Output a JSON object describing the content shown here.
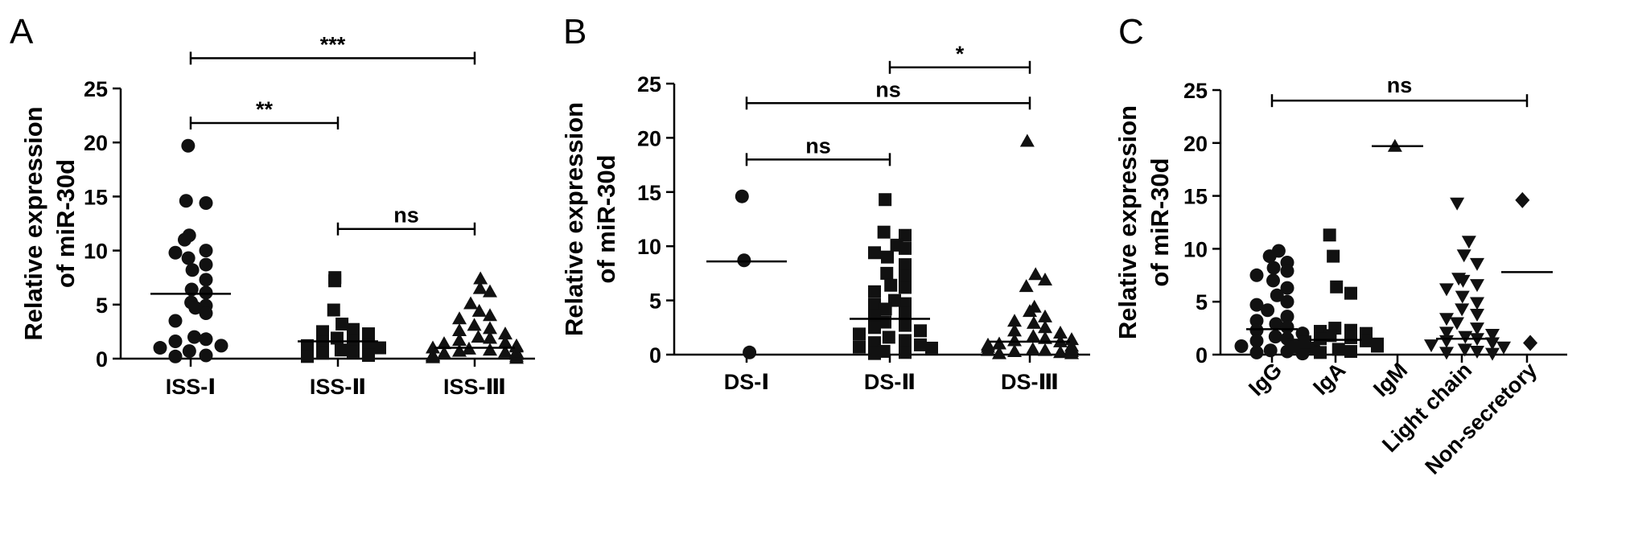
{
  "chart_data": [
    {
      "type": "scatter",
      "panel": "A",
      "ylabel": "Relative expression of miR-30d",
      "ylabel_lines": [
        "Relative expression",
        "of miR-30d"
      ],
      "ylim": [
        0,
        25
      ],
      "yticks": [
        0,
        5,
        10,
        15,
        20,
        25
      ],
      "categories": [
        "ISS-Ⅰ",
        "ISS-Ⅱ",
        "ISS-Ⅲ"
      ],
      "markers": [
        "circle",
        "square",
        "triangle-up"
      ],
      "means": [
        6.0,
        1.6,
        1.0
      ],
      "series": [
        {
          "category": "ISS-Ⅰ",
          "values": [
            19.7,
            14.6,
            14.4,
            11.4,
            11.0,
            10.0,
            9.8,
            9.3,
            8.7,
            8.2,
            7.3,
            6.4,
            6.1,
            5.2,
            4.9,
            4.7,
            4.2,
            3.5,
            2.0,
            1.8,
            1.6,
            1.2,
            1.0,
            0.7,
            0.3,
            0.2
          ]
        },
        {
          "category": "ISS-Ⅱ",
          "values": [
            7.5,
            7.2,
            4.5,
            3.2,
            2.7,
            2.5,
            2.3,
            1.9,
            1.7,
            1.5,
            1.3,
            1.2,
            1.0,
            0.8,
            0.6,
            0.5,
            0.3,
            0.2
          ]
        },
        {
          "category": "ISS-Ⅲ",
          "values": [
            7.4,
            6.5,
            6.2,
            5.1,
            4.4,
            4.0,
            3.7,
            3.1,
            2.8,
            2.6,
            2.3,
            2.0,
            1.9,
            1.7,
            1.5,
            1.4,
            1.2,
            1.0,
            0.9,
            0.8,
            0.7,
            0.6,
            0.5,
            0.4,
            0.3,
            0.2,
            0.1,
            0.05,
            0.3,
            0.6,
            1.1,
            0.2
          ]
        }
      ],
      "comparisons": [
        {
          "from": 0,
          "to": 2,
          "y": 27.8,
          "label": "***"
        },
        {
          "from": 0,
          "to": 1,
          "y": 21.8,
          "label": "**"
        },
        {
          "from": 1,
          "to": 2,
          "y": 12.0,
          "label": "ns"
        }
      ]
    },
    {
      "type": "scatter",
      "panel": "B",
      "ylabel": "Relative expression of miR-30d",
      "ylabel_lines": [
        "Relative expression",
        "of miR-30d"
      ],
      "ylim": [
        0,
        25
      ],
      "yticks": [
        0,
        5,
        10,
        15,
        20,
        25
      ],
      "categories": [
        "DS-Ⅰ",
        "DS-Ⅱ",
        "DS-Ⅲ"
      ],
      "markers": [
        "circle",
        "square",
        "triangle-up"
      ],
      "means": [
        8.6,
        3.3,
        1.2
      ],
      "series": [
        {
          "category": "DS-Ⅰ",
          "values": [
            14.6,
            8.7,
            0.2
          ]
        },
        {
          "category": "DS-Ⅱ",
          "values": [
            14.3,
            11.3,
            11.0,
            10.1,
            9.8,
            9.4,
            9.0,
            8.3,
            7.5,
            7.2,
            6.4,
            6.2,
            5.8,
            5.0,
            4.7,
            4.6,
            4.2,
            3.8,
            3.6,
            3.0,
            2.7,
            2.5,
            2.2,
            1.9,
            1.6,
            1.3,
            1.1,
            0.9,
            0.7,
            0.6,
            0.3,
            0.2,
            0.1
          ]
        },
        {
          "category": "DS-Ⅲ",
          "values": [
            19.7,
            7.4,
            6.9,
            6.3,
            4.4,
            4.0,
            3.5,
            3.1,
            2.9,
            2.5,
            2.2,
            2.0,
            1.7,
            1.5,
            1.3,
            1.2,
            1.0,
            0.8,
            0.7,
            0.6,
            0.5,
            0.4,
            0.3,
            0.2,
            0.1,
            0.1,
            0.4,
            0.9,
            1.4,
            0.3
          ]
        }
      ],
      "comparisons": [
        {
          "from": 1,
          "to": 2,
          "y": 26.5,
          "label": "*"
        },
        {
          "from": 0,
          "to": 2,
          "y": 23.2,
          "label": "ns"
        },
        {
          "from": 0,
          "to": 1,
          "y": 18.0,
          "label": "ns"
        }
      ]
    },
    {
      "type": "scatter",
      "panel": "C",
      "ylabel": "Relative expression of miR-30d",
      "ylabel_lines": [
        "Relative expression",
        "of miR-30d"
      ],
      "ylim": [
        0,
        25
      ],
      "yticks": [
        0,
        5,
        10,
        15,
        20,
        25
      ],
      "categories": [
        "IgG",
        "IgA",
        "IgM",
        "Light chain",
        "Non-secretory"
      ],
      "markers": [
        "circle",
        "square",
        "triangle-up",
        "triangle-down",
        "diamond"
      ],
      "means": [
        2.4,
        1.4,
        19.7,
        1.5,
        7.8
      ],
      "series": [
        {
          "category": "IgG",
          "values": [
            9.8,
            9.3,
            8.7,
            8.2,
            7.9,
            7.5,
            7.0,
            6.3,
            5.6,
            5.0,
            4.7,
            4.2,
            3.6,
            3.2,
            2.9,
            2.6,
            2.3,
            2.0,
            1.7,
            1.5,
            1.3,
            1.0,
            0.8,
            0.6,
            0.4,
            0.3,
            0.2,
            0.1
          ]
        },
        {
          "category": "IgA",
          "values": [
            11.3,
            9.3,
            6.4,
            5.8,
            2.5,
            2.3,
            2.2,
            2.0,
            1.8,
            1.6,
            1.5,
            1.3,
            1.2,
            1.0,
            0.9,
            0.8,
            0.7,
            0.5,
            0.3,
            0.2
          ]
        },
        {
          "category": "IgM",
          "values": [
            19.7
          ]
        },
        {
          "category": "Light chain",
          "values": [
            14.3,
            10.7,
            9.4,
            8.6,
            7.2,
            7.0,
            6.6,
            6.2,
            5.5,
            4.9,
            4.3,
            3.8,
            3.4,
            3.0,
            2.5,
            2.1,
            1.9,
            1.7,
            1.5,
            1.3,
            1.1,
            0.9,
            0.7,
            0.5,
            0.3,
            0.2,
            0.1
          ]
        },
        {
          "category": "Non-secretory",
          "values": [
            14.6,
            1.1
          ]
        }
      ],
      "comparisons": [
        {
          "from": 0,
          "to": 4,
          "y": 24.0,
          "label": "ns"
        }
      ]
    }
  ]
}
